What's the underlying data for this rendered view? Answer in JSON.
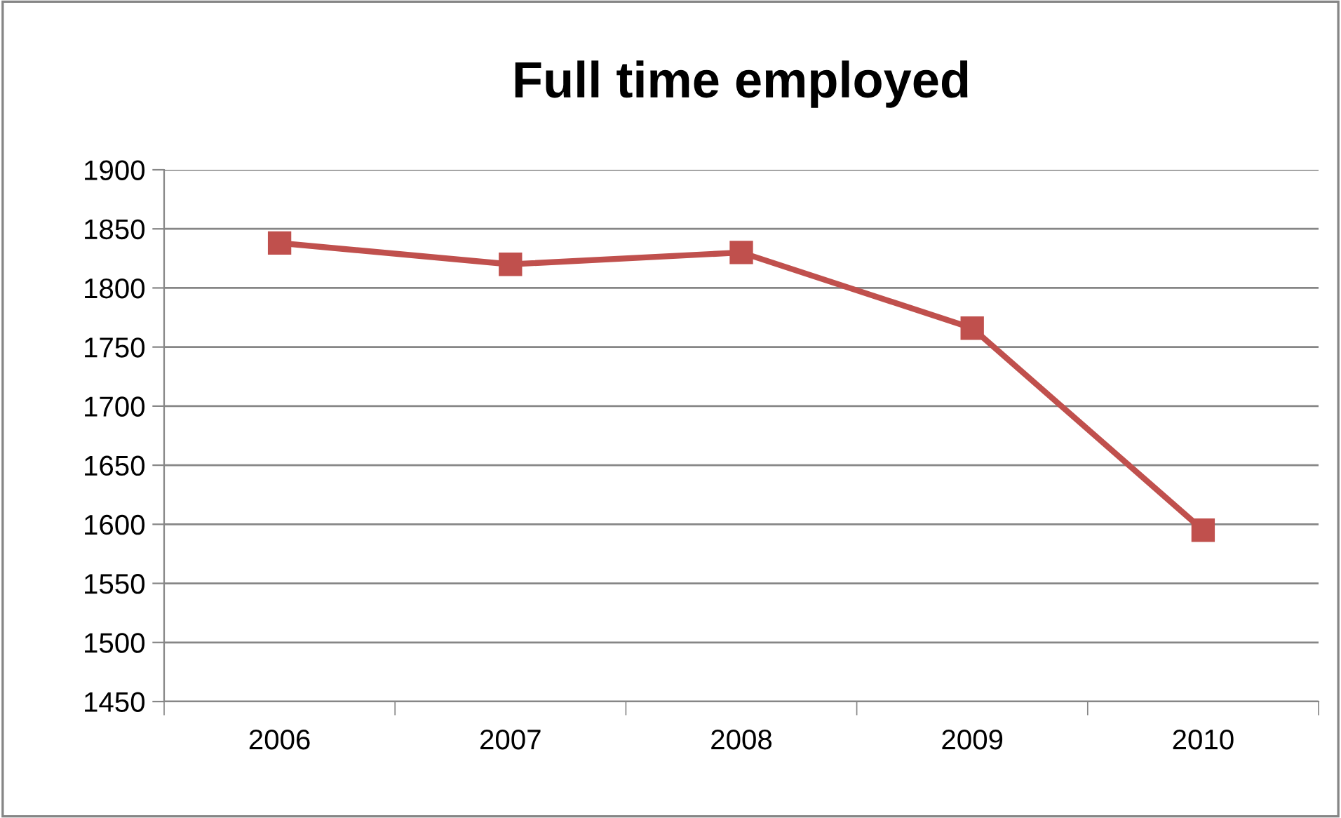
{
  "chart_data": {
    "type": "line",
    "title": "Full time employed",
    "categories": [
      "2006",
      "2007",
      "2008",
      "2009",
      "2010"
    ],
    "series": [
      {
        "color": "#c0504d",
        "values": [
          1838,
          1820,
          1830,
          1766,
          1595
        ]
      }
    ],
    "ylim": [
      1450,
      1900
    ],
    "yticks": [
      1450,
      1500,
      1550,
      1600,
      1650,
      1700,
      1750,
      1800,
      1850,
      1900
    ],
    "grid": "y",
    "legend": false,
    "marker": "square",
    "line_style": "solid"
  }
}
